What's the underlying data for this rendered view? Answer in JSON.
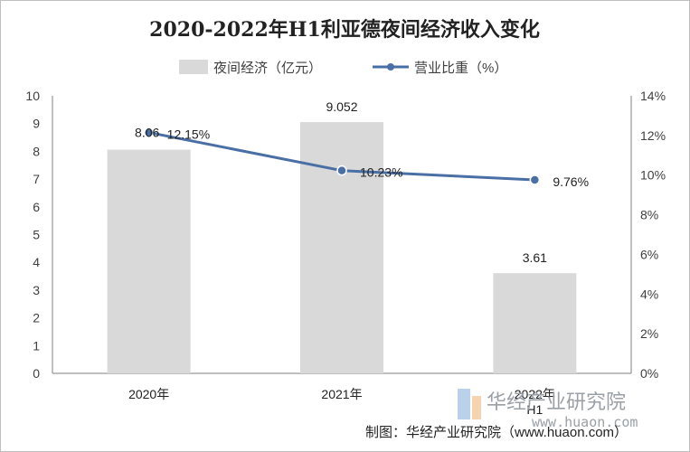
{
  "chart_data": {
    "type": "bar",
    "title": "2020-2022年H1利亚德夜间经济收入变化",
    "categories": [
      [
        "2020年"
      ],
      [
        "2021年"
      ],
      [
        "2022年",
        "H1"
      ]
    ],
    "series": [
      {
        "name": "夜间经济（亿元）",
        "type": "bar",
        "axis": "left",
        "values": [
          8.06,
          9.052,
          3.61
        ],
        "labels": [
          "8.06",
          "9.052",
          "3.61"
        ],
        "color": "#d9d9d9"
      },
      {
        "name": "营业比重（%）",
        "type": "line",
        "axis": "right",
        "values": [
          12.15,
          10.23,
          9.76
        ],
        "labels": [
          "12.15%",
          "10.23%",
          "9.76%"
        ],
        "color": "#4a6fa5"
      }
    ],
    "y_left": {
      "min": 0,
      "max": 10,
      "step": 1,
      "ticks": [
        "0",
        "1",
        "2",
        "3",
        "4",
        "5",
        "6",
        "7",
        "8",
        "9",
        "10"
      ]
    },
    "y_right": {
      "min": 0,
      "max": 14,
      "step": 2,
      "ticks": [
        "0%",
        "2%",
        "4%",
        "6%",
        "8%",
        "10%",
        "12%",
        "14%"
      ]
    },
    "legend_position": "top",
    "grid": false
  },
  "watermark": {
    "name": "华经产业研究院",
    "url": "www.huaon.com"
  },
  "source": "制图：华经产业研究院（www.huaon.com）"
}
